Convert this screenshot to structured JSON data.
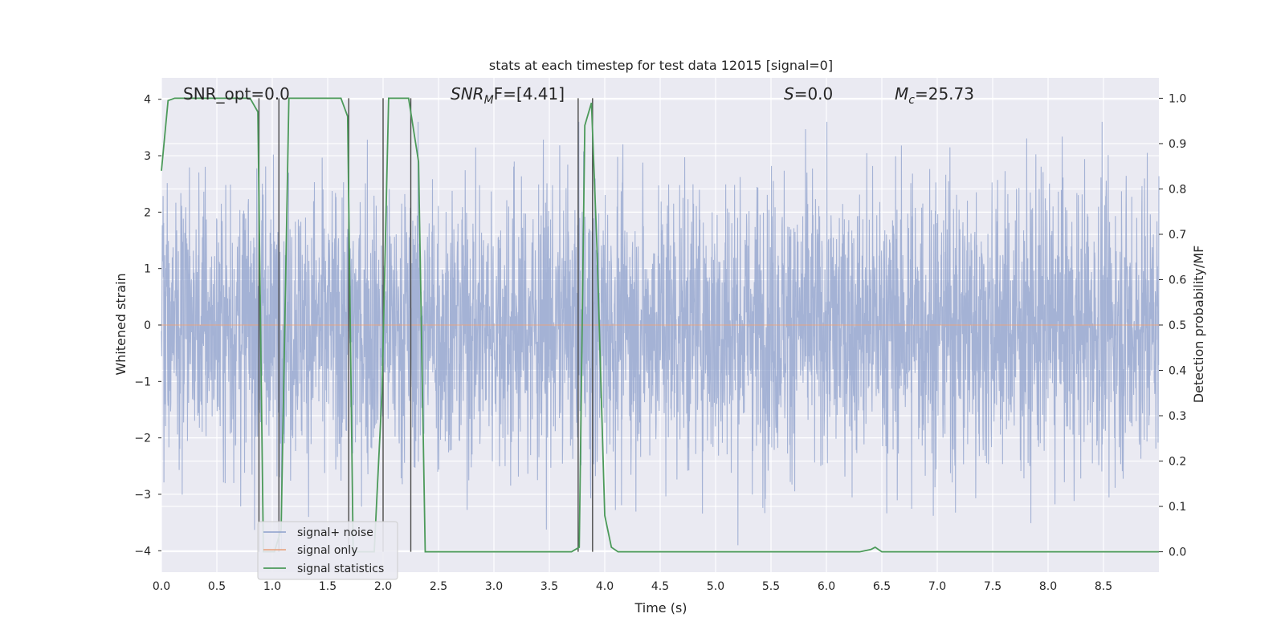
{
  "chart_data": {
    "type": "line",
    "title": "stats at each timestep for test data 12015 [signal=0]",
    "xlabel": "Time (s)",
    "ylabel_left": "Whitened strain",
    "ylabel_right": "Detection probability/MF",
    "xlim": [
      0.0,
      9.0
    ],
    "ylim_left": [
      -4.38,
      4.38
    ],
    "ylim_right": [
      -0.045,
      1.045
    ],
    "x_ticks": [
      "0.0",
      "0.5",
      "1.0",
      "1.5",
      "2.0",
      "2.5",
      "3.0",
      "3.5",
      "4.0",
      "4.5",
      "5.0",
      "5.5",
      "6.0",
      "6.5",
      "7.0",
      "7.5",
      "8.0",
      "8.5"
    ],
    "y_ticks_left": [
      "4",
      "3",
      "2",
      "1",
      "0",
      "−1",
      "−2",
      "−3",
      "−4"
    ],
    "y_ticks_right": [
      "1.0",
      "0.9",
      "0.8",
      "0.7",
      "0.6",
      "0.5",
      "0.4",
      "0.3",
      "0.2",
      "0.1",
      "0.0"
    ],
    "grid": true,
    "legend_position": "lower-left",
    "annotations": {
      "snr_opt": "SNR_opt=0.0",
      "snr_mf_main": "SNR",
      "snr_mf_sub": "M",
      "snr_mf_rest": "F=[4.41]",
      "s_main": "S",
      "s_rest": "=0.0",
      "mc_main": "M",
      "mc_sub": "c",
      "mc_rest": "=25.73"
    },
    "series": [
      {
        "name": "signal+ noise",
        "color": "#8c9fcb",
        "axis": "left",
        "description_values": "white-noise whitened strain, roughly within ±3.5",
        "amplitude_std": 1.0
      },
      {
        "name": "signal only",
        "color": "#e8a07a",
        "axis": "left",
        "values_note": "zero"
      },
      {
        "name": "signal statistics",
        "color": "#4c9a5a",
        "axis": "right",
        "x": [
          0.0,
          0.06,
          0.12,
          0.2,
          0.5,
          0.8,
          0.87,
          0.92,
          1.02,
          1.08,
          1.15,
          1.4,
          1.62,
          1.68,
          1.73,
          1.78,
          1.92,
          1.99,
          2.05,
          2.15,
          2.23,
          2.32,
          2.38,
          2.5,
          3.0,
          3.5,
          3.7,
          3.77,
          3.82,
          3.88,
          3.93,
          4.0,
          4.06,
          4.12,
          4.3,
          5.0,
          5.5,
          6.0,
          6.3,
          6.4,
          6.44,
          6.5,
          7.0,
          7.5,
          8.0,
          8.5,
          9.0
        ],
        "y": [
          0.84,
          0.995,
          1.0,
          1.0,
          1.0,
          1.0,
          0.97,
          0.0,
          0.0,
          0.05,
          1.0,
          1.0,
          1.0,
          0.96,
          0.0,
          0.0,
          0.0,
          0.35,
          1.0,
          1.0,
          1.0,
          0.86,
          0.0,
          0.0,
          0.0,
          0.0,
          0.0,
          0.01,
          0.94,
          0.99,
          0.67,
          0.08,
          0.01,
          0.0,
          0.0,
          0.0,
          0.0,
          0.0,
          0.0,
          0.005,
          0.01,
          0.0,
          0.0,
          0.0,
          0.0,
          0.0,
          0.0
        ]
      }
    ],
    "vertical_markers_x": [
      0.88,
      1.06,
      1.69,
      2.0,
      2.25,
      3.76,
      3.89
    ]
  }
}
